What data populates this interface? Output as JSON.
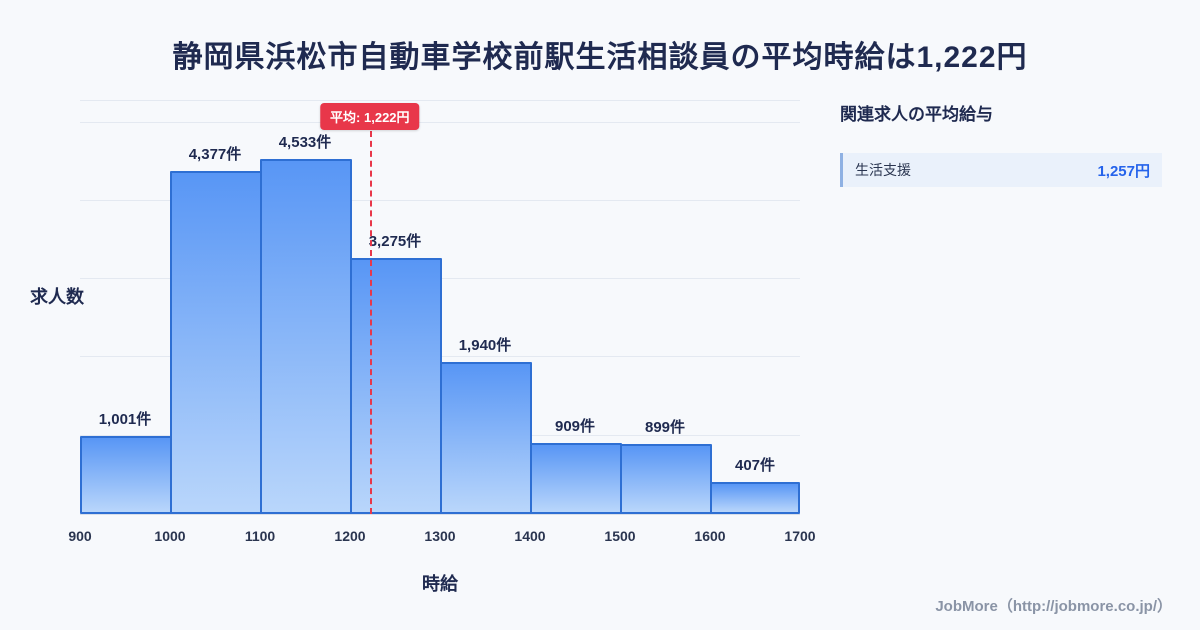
{
  "title": "静岡県浜松市自動車学校前駅生活相談員の平均時給は1,222円",
  "chart_data": {
    "type": "bar",
    "bin_edges": [
      900,
      1000,
      1100,
      1200,
      1300,
      1400,
      1500,
      1600,
      1700
    ],
    "values": [
      1001,
      4377,
      4533,
      3275,
      1940,
      909,
      899,
      407
    ],
    "labels": [
      "1,001件",
      "4,377件",
      "4,533件",
      "3,275件",
      "1,940件",
      "909件",
      "899件",
      "407件"
    ],
    "title": "",
    "xlabel": "時給",
    "ylabel": "求人数",
    "xlim": [
      900,
      1700
    ],
    "ylim": [
      0,
      5300
    ],
    "gridline_step": 1000,
    "grid": "horizontal",
    "average": {
      "value": 1222,
      "label": "平均: 1,222円"
    }
  },
  "side_panel": {
    "title": "関連求人の平均給与",
    "items": [
      {
        "label": "生活支援",
        "value": "1,257円"
      }
    ]
  },
  "footer": {
    "credit": "JobMore（http://jobmore.co.jp/）"
  },
  "colors": {
    "accent_red": "#e8374a",
    "value_blue": "#2563eb",
    "bar_border": "#2e6fd3",
    "bar_fill_top": "#5896f5",
    "bar_fill_bottom": "#b9d6fb",
    "title_navy": "#1f2a50"
  }
}
